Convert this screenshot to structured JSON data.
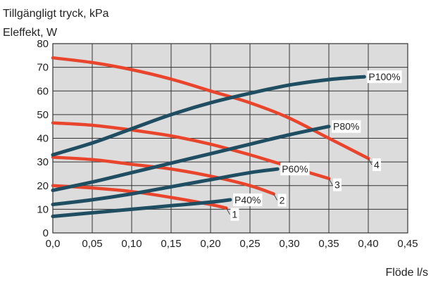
{
  "chart_data": {
    "type": "line",
    "ylabel_lines": [
      "Tillgängligt tryck, kPa",
      "Eleffekt, W"
    ],
    "xlabel": "Flöde l/s",
    "xlim": [
      0,
      0.45
    ],
    "ylim": [
      0,
      80
    ],
    "x_ticks": [
      "0,0",
      "0,05",
      "0,10",
      "0,15",
      "0,20",
      "0,25",
      "0,30",
      "0,35",
      "0,40",
      "0,45"
    ],
    "y_ticks": [
      "0",
      "10",
      "20",
      "30",
      "40",
      "50",
      "60",
      "70",
      "80"
    ],
    "grid": true,
    "colors": {
      "plot_background": "#dcdcdc",
      "pressure_curve": "#e8452c",
      "power_curve": "#1f4e63",
      "grid": "#333333"
    },
    "pressure_series": [
      {
        "name": "1",
        "x": [
          0.0,
          0.05,
          0.1,
          0.15,
          0.2,
          0.22
        ],
        "y": [
          20,
          19,
          17.5,
          15,
          12,
          10.5
        ]
      },
      {
        "name": "2",
        "x": [
          0.0,
          0.05,
          0.1,
          0.15,
          0.2,
          0.25,
          0.28
        ],
        "y": [
          32,
          31,
          29,
          27,
          24,
          20,
          16.5
        ]
      },
      {
        "name": "3",
        "x": [
          0.0,
          0.05,
          0.1,
          0.15,
          0.2,
          0.25,
          0.3,
          0.35
        ],
        "y": [
          46.5,
          45.5,
          43.5,
          41,
          37.5,
          33,
          28,
          23
        ]
      },
      {
        "name": "4",
        "x": [
          0.0,
          0.05,
          0.1,
          0.15,
          0.2,
          0.25,
          0.3,
          0.35,
          0.4
        ],
        "y": [
          74,
          72,
          69,
          65,
          60,
          55,
          48.5,
          40,
          31.5
        ]
      }
    ],
    "power_series": [
      {
        "name": "P40%",
        "x": [
          0.0,
          0.05,
          0.1,
          0.15,
          0.2,
          0.225
        ],
        "y": [
          7,
          8.5,
          10,
          11.5,
          13,
          14
        ]
      },
      {
        "name": "P60%",
        "x": [
          0.0,
          0.05,
          0.1,
          0.15,
          0.2,
          0.25,
          0.285
        ],
        "y": [
          12,
          14,
          16.5,
          19.5,
          22.5,
          25.5,
          27
        ]
      },
      {
        "name": "P80%",
        "x": [
          0.0,
          0.05,
          0.1,
          0.15,
          0.2,
          0.25,
          0.3,
          0.35
        ],
        "y": [
          18,
          21.5,
          25.5,
          29.5,
          33.5,
          37.5,
          41.5,
          45
        ]
      },
      {
        "name": "P100%",
        "x": [
          0.0,
          0.05,
          0.1,
          0.15,
          0.2,
          0.25,
          0.3,
          0.35,
          0.395
        ],
        "y": [
          33,
          38,
          44,
          50,
          55,
          59,
          62.5,
          64.8,
          66
        ]
      }
    ]
  }
}
